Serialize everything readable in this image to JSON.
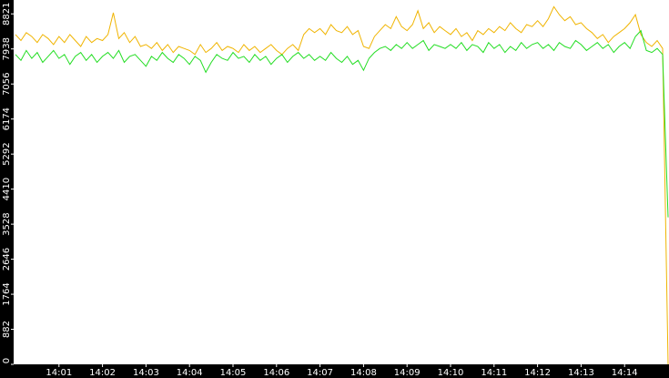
{
  "chart_data": {
    "type": "line",
    "categories": [
      null,
      null,
      null,
      null,
      null,
      null,
      null,
      null,
      "14:01",
      null,
      null,
      null,
      null,
      null,
      null,
      null,
      "14:02",
      null,
      null,
      null,
      null,
      null,
      null,
      null,
      "14:03",
      null,
      null,
      null,
      null,
      null,
      null,
      null,
      "14:04",
      null,
      null,
      null,
      null,
      null,
      null,
      null,
      "14:05",
      null,
      null,
      null,
      null,
      null,
      null,
      null,
      "14:06",
      null,
      null,
      null,
      null,
      null,
      null,
      null,
      "14:07",
      null,
      null,
      null,
      null,
      null,
      null,
      null,
      "14:08",
      null,
      null,
      null,
      null,
      null,
      null,
      null,
      "14:09",
      null,
      null,
      null,
      null,
      null,
      null,
      null,
      "14:10",
      null,
      null,
      null,
      null,
      null,
      null,
      null,
      "14:11",
      null,
      null,
      null,
      null,
      null,
      null,
      null,
      "14:12",
      null,
      null,
      null,
      null,
      null,
      null,
      null,
      "14:13",
      null,
      null,
      null,
      null,
      null,
      null,
      null,
      "14:14",
      null,
      null,
      null,
      null,
      null,
      null,
      null,
      null
    ],
    "series": [
      {
        "color": "#f0b400",
        "values": [
          8300,
          8150,
          8350,
          8250,
          8100,
          8300,
          8200,
          8050,
          8250,
          8100,
          8300,
          8150,
          8000,
          8250,
          8100,
          8200,
          8150,
          8300,
          8850,
          8200,
          8350,
          8100,
          8250,
          8000,
          8050,
          7950,
          8100,
          7900,
          8050,
          7850,
          8000,
          7950,
          7900,
          7800,
          8050,
          7850,
          7950,
          8100,
          7900,
          8000,
          7950,
          7850,
          8050,
          7900,
          8000,
          7850,
          7950,
          8050,
          7900,
          7800,
          7950,
          8050,
          7900,
          8300,
          8450,
          8350,
          8450,
          8300,
          8550,
          8400,
          8350,
          8500,
          8300,
          8400,
          8000,
          7950,
          8250,
          8400,
          8550,
          8450,
          8750,
          8500,
          8400,
          8550,
          8900,
          8450,
          8600,
          8350,
          8500,
          8400,
          8300,
          8450,
          8250,
          8350,
          8150,
          8400,
          8300,
          8450,
          8350,
          8500,
          8400,
          8600,
          8450,
          8350,
          8550,
          8500,
          8650,
          8500,
          8700,
          9000,
          8800,
          8650,
          8750,
          8550,
          8600,
          8450,
          8350,
          8200,
          8300,
          8100,
          8250,
          8350,
          8450,
          8600,
          8800,
          8300,
          8100,
          8000,
          8150,
          7950,
          0
        ]
      },
      {
        "color": "#22dd22",
        "values": [
          7800,
          7650,
          7900,
          7700,
          7850,
          7600,
          7750,
          7900,
          7700,
          7800,
          7550,
          7750,
          7850,
          7650,
          7800,
          7600,
          7750,
          7850,
          7700,
          7900,
          7600,
          7750,
          7800,
          7650,
          7500,
          7750,
          7650,
          7850,
          7700,
          7600,
          7800,
          7700,
          7550,
          7750,
          7650,
          7350,
          7600,
          7800,
          7700,
          7650,
          7850,
          7700,
          7750,
          7600,
          7800,
          7650,
          7750,
          7550,
          7700,
          7800,
          7600,
          7750,
          7850,
          7700,
          7800,
          7650,
          7750,
          7650,
          7850,
          7700,
          7600,
          7750,
          7550,
          7650,
          7400,
          7700,
          7850,
          7950,
          8000,
          7900,
          8050,
          7950,
          8100,
          7950,
          8050,
          8150,
          7900,
          8050,
          8000,
          7950,
          8050,
          7950,
          8100,
          7900,
          8050,
          8000,
          7850,
          8100,
          7950,
          8050,
          7850,
          8000,
          7900,
          8100,
          7950,
          8050,
          8100,
          7950,
          8050,
          7900,
          8100,
          8000,
          7950,
          8150,
          8050,
          7900,
          8000,
          8100,
          7950,
          8050,
          7850,
          8000,
          8100,
          7950,
          8250,
          8400,
          7900,
          7850,
          7950,
          7800,
          3700
        ]
      }
    ],
    "ylim": [
      0,
      9170
    ],
    "yticks": [
      0,
      882,
      1764,
      2646,
      3528,
      4410,
      5292,
      6174,
      7056,
      7938,
      8821
    ]
  }
}
